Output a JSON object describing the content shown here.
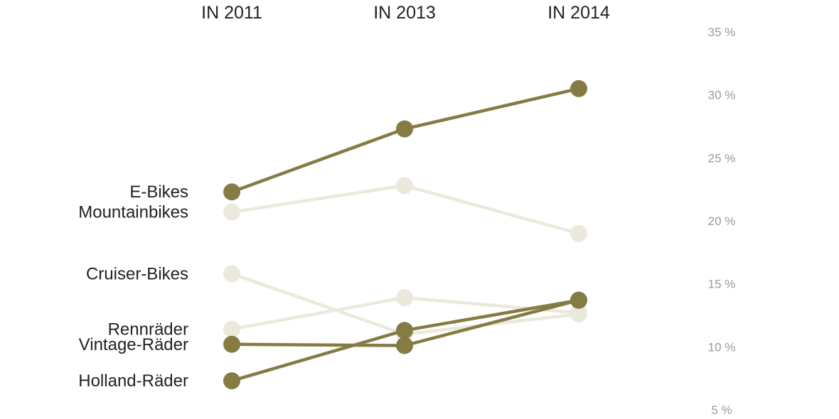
{
  "chart_data": {
    "type": "line",
    "categories": [
      "IN 2011",
      "IN 2013",
      "IN 2014"
    ],
    "ylim": [
      5,
      35
    ],
    "yticks": [
      35,
      30,
      25,
      20,
      15,
      10,
      5
    ],
    "ytick_suffix": " %",
    "ylabel": "",
    "title": "",
    "grid": false,
    "colors": {
      "highlight": "#857b43",
      "muted": "#ebe8dc",
      "label": "#222222",
      "tick": "#999999"
    },
    "series": [
      {
        "name": "Mountainbikes",
        "values": [
          20.7,
          22.8,
          19.0
        ],
        "highlight": false
      },
      {
        "name": "Cruiser-Bikes",
        "values": [
          15.8,
          11.0,
          12.6
        ],
        "highlight": false
      },
      {
        "name": "Rennräder",
        "values": [
          11.4,
          13.9,
          12.7
        ],
        "highlight": false
      },
      {
        "name": "E-Bikes",
        "values": [
          22.3,
          27.3,
          30.5
        ],
        "highlight": true
      },
      {
        "name": "Vintage-Räder",
        "values": [
          10.2,
          10.1,
          13.7
        ],
        "highlight": true
      },
      {
        "name": "Holland-Räder",
        "values": [
          7.3,
          11.3,
          13.7
        ],
        "highlight": true
      }
    ]
  }
}
